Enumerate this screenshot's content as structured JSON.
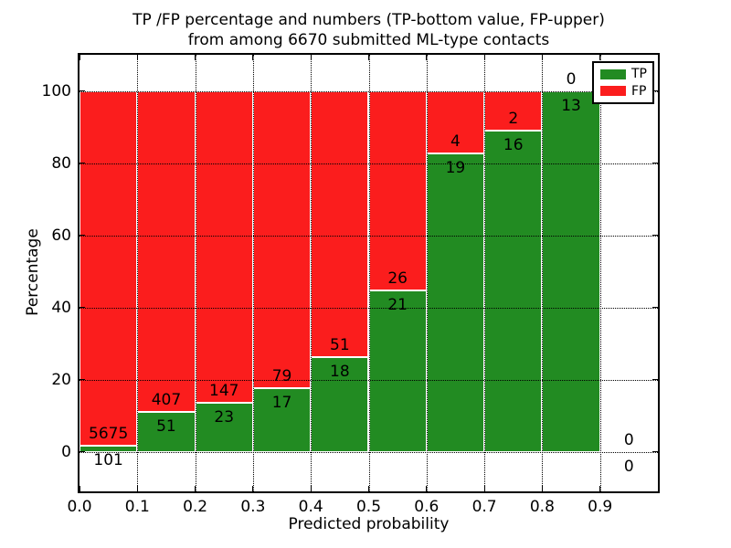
{
  "title": {
    "line1": "TP /FP percentage and numbers (TP-bottom value, FP-upper)",
    "line2": "from among 6670 submitted ML-type contacts"
  },
  "chart_data": {
    "type": "bar",
    "stacked": true,
    "normalized_to_percent": true,
    "title": "TP /FP percentage and numbers (TP-bottom value, FP-upper)\nfrom among 6670 submitted ML-type contacts",
    "xlabel": "Predicted probability",
    "ylabel": "Percentage",
    "total_contacts_shown_in_title": 6670,
    "bin_starts": [
      0.0,
      0.1,
      0.2,
      0.3,
      0.4,
      0.5,
      0.6,
      0.7,
      0.8,
      0.9
    ],
    "bin_width": 0.1,
    "series": [
      {
        "name": "TP",
        "color": "#228b22",
        "counts": [
          101,
          51,
          23,
          17,
          18,
          21,
          19,
          16,
          13,
          0
        ]
      },
      {
        "name": "FP",
        "color": "#fb1d1d",
        "counts": [
          5675,
          407,
          147,
          79,
          51,
          26,
          4,
          2,
          0,
          0
        ]
      }
    ],
    "bar_value_labels": {
      "tp_bottom": [
        "101",
        "51",
        "23",
        "17",
        "18",
        "21",
        "19",
        "16",
        "13",
        "0"
      ],
      "fp_upper": [
        "5675",
        "407",
        "147",
        "79",
        "51",
        "26",
        "4",
        "2",
        "0",
        "0"
      ]
    },
    "x_tick_labels": [
      "0.0",
      "0.1",
      "0.2",
      "0.3",
      "0.4",
      "0.5",
      "0.6",
      "0.7",
      "0.8",
      "0.9"
    ],
    "x_tick_values": [
      0.0,
      0.1,
      0.2,
      0.3,
      0.4,
      0.5,
      0.6,
      0.7,
      0.8,
      0.9
    ],
    "y_tick_labels": [
      "0",
      "20",
      "40",
      "60",
      "80",
      "100"
    ],
    "y_tick_values": [
      0,
      20,
      40,
      60,
      80,
      100
    ],
    "xlim": [
      0.0,
      1.0
    ],
    "ylim": [
      -11,
      110
    ],
    "grid": "dotted both axes",
    "legend": {
      "position": "upper right",
      "entries": [
        {
          "label": "TP",
          "color": "#228b22"
        },
        {
          "label": "FP",
          "color": "#fb1d1d"
        }
      ]
    },
    "colors": {
      "tp": "#228b22",
      "fp": "#fb1d1d",
      "axis": "#000000",
      "background": "#ffffff"
    }
  }
}
